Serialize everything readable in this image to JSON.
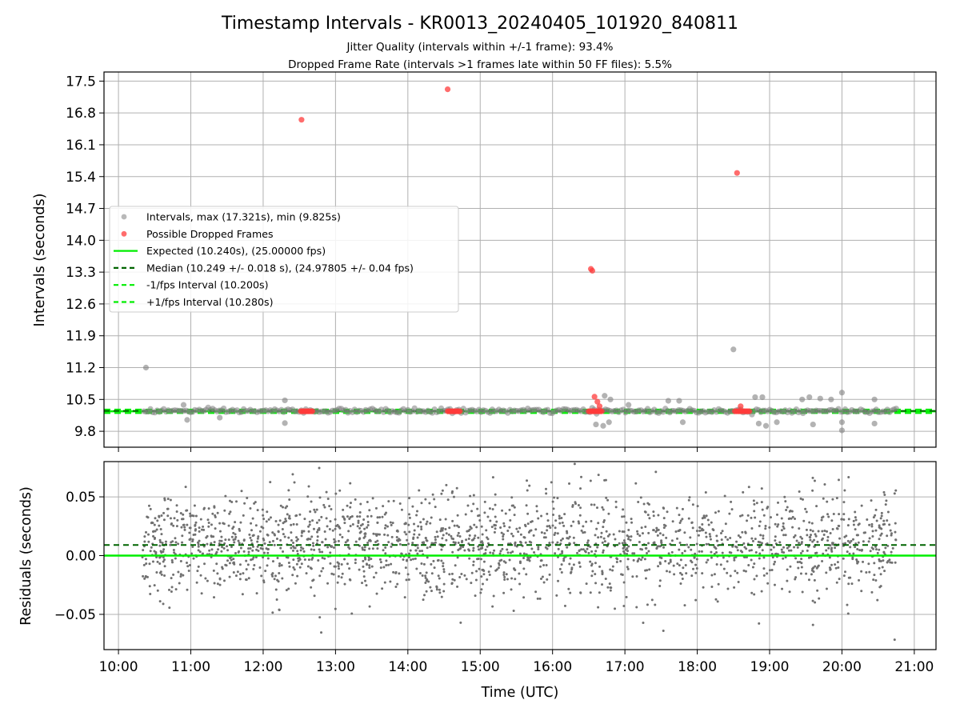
{
  "chart_data": [
    {
      "type": "scatter",
      "title": "Timestamp Intervals - KR0013_20240405_101920_840811",
      "subtitle_lines": [
        "Jitter Quality (intervals within +/-1 frame): 93.4%",
        "Dropped Frame Rate (intervals >1 frames late within 50 FF files): 5.5%"
      ],
      "xlabel": "",
      "ylabel": "Intervals (seconds)",
      "x_unit": "hours UTC",
      "xlim": [
        9.8,
        21.3
      ],
      "ylim": [
        9.45,
        17.7
      ],
      "yticks": [
        "9.8",
        "10.5",
        "11.2",
        "11.9",
        "12.6",
        "13.3",
        "14.0",
        "14.7",
        "15.4",
        "16.1",
        "16.8",
        "17.5"
      ],
      "xticks": [
        "10:00",
        "11:00",
        "12:00",
        "13:00",
        "14:00",
        "15:00",
        "16:00",
        "17:00",
        "18:00",
        "19:00",
        "20:00",
        "21:00"
      ],
      "grid": true,
      "legend_position": "center-left",
      "legend": [
        {
          "label": "Intervals, max (17.321s), min (9.825s)",
          "kind": "marker",
          "color": "#808080"
        },
        {
          "label": "Possible Dropped Frames",
          "kind": "marker",
          "color": "#ff3b3b"
        },
        {
          "label": "Expected (10.240s), (25.00000 fps)",
          "kind": "solid",
          "color": "#00ee00"
        },
        {
          "label": "Median (10.249 +/- 0.018 s), (24.97805 +/- 0.04 fps)",
          "kind": "dashed",
          "color": "#006400"
        },
        {
          "label": "-1/fps Interval (10.200s)",
          "kind": "dashed",
          "color": "#00ee00"
        },
        {
          "label": "+1/fps Interval (10.280s)",
          "kind": "dashed",
          "color": "#00ee00"
        }
      ],
      "reference_lines": {
        "expected": 10.24,
        "median": 10.249,
        "minus_one_frame": 10.2,
        "plus_one_frame": 10.28
      },
      "intervals_range": {
        "x_start": 10.35,
        "x_end": 20.75
      },
      "outlier_points": [
        {
          "x": 10.38,
          "y": 11.2
        },
        {
          "x": 10.9,
          "y": 10.38
        },
        {
          "x": 10.95,
          "y": 10.05
        },
        {
          "x": 11.4,
          "y": 10.1
        },
        {
          "x": 12.3,
          "y": 10.48
        },
        {
          "x": 12.3,
          "y": 9.98
        },
        {
          "x": 16.6,
          "y": 9.95
        },
        {
          "x": 16.7,
          "y": 9.92
        },
        {
          "x": 16.78,
          "y": 10.0
        },
        {
          "x": 16.72,
          "y": 10.58
        },
        {
          "x": 16.8,
          "y": 10.5
        },
        {
          "x": 17.05,
          "y": 10.38
        },
        {
          "x": 17.6,
          "y": 10.47
        },
        {
          "x": 17.75,
          "y": 10.47
        },
        {
          "x": 17.8,
          "y": 10.0
        },
        {
          "x": 18.5,
          "y": 11.6
        },
        {
          "x": 18.8,
          "y": 10.55
        },
        {
          "x": 18.9,
          "y": 10.55
        },
        {
          "x": 18.85,
          "y": 9.97
        },
        {
          "x": 18.95,
          "y": 9.92
        },
        {
          "x": 19.1,
          "y": 10.0
        },
        {
          "x": 19.45,
          "y": 10.5
        },
        {
          "x": 19.55,
          "y": 10.55
        },
        {
          "x": 19.6,
          "y": 9.95
        },
        {
          "x": 19.7,
          "y": 10.52
        },
        {
          "x": 19.85,
          "y": 10.5
        },
        {
          "x": 20.0,
          "y": 10.65
        },
        {
          "x": 20.0,
          "y": 9.82
        },
        {
          "x": 20.0,
          "y": 10.0
        },
        {
          "x": 20.45,
          "y": 10.5
        },
        {
          "x": 20.45,
          "y": 9.97
        }
      ],
      "dropped_points": [
        {
          "x": 12.53,
          "y": 16.65
        },
        {
          "x": 14.55,
          "y": 17.32
        },
        {
          "x": 16.53,
          "y": 13.37
        },
        {
          "x": 16.55,
          "y": 13.33
        },
        {
          "x": 16.58,
          "y": 10.56
        },
        {
          "x": 16.62,
          "y": 10.45
        },
        {
          "x": 16.65,
          "y": 10.35
        },
        {
          "x": 18.55,
          "y": 15.48
        },
        {
          "x": 18.6,
          "y": 10.35
        }
      ],
      "dropped_clusters": [
        {
          "x_start": 12.52,
          "x_end": 12.68,
          "y": 10.24
        },
        {
          "x_start": 14.55,
          "x_end": 14.72,
          "y": 10.24
        },
        {
          "x_start": 16.5,
          "x_end": 16.68,
          "y": 10.24
        },
        {
          "x_start": 18.52,
          "x_end": 18.72,
          "y": 10.24
        }
      ]
    },
    {
      "type": "scatter",
      "xlabel": "Time (UTC)",
      "ylabel": "Residuals (seconds)",
      "xlim": [
        9.8,
        21.3
      ],
      "ylim": [
        -0.08,
        0.08
      ],
      "yticks": [
        "−0.05",
        "0.00",
        "0.05"
      ],
      "ytick_values": [
        -0.05,
        0.0,
        0.05
      ],
      "xticks": [
        "10:00",
        "11:00",
        "12:00",
        "13:00",
        "14:00",
        "15:00",
        "16:00",
        "17:00",
        "18:00",
        "19:00",
        "20:00",
        "21:00"
      ],
      "grid": true,
      "reference_lines": {
        "expected": 0.0,
        "median": 0.009
      },
      "residual_range": {
        "x_start": 10.33,
        "x_end": 20.75,
        "center": 0.009,
        "spread": 0.022
      },
      "point_color": "#707070"
    }
  ],
  "colors": {
    "interval_marker": "#808080",
    "dropped_marker": "#ff3b3b",
    "expected_line": "#00ee00",
    "median_line": "#006400",
    "grid": "#b0b0b0"
  }
}
